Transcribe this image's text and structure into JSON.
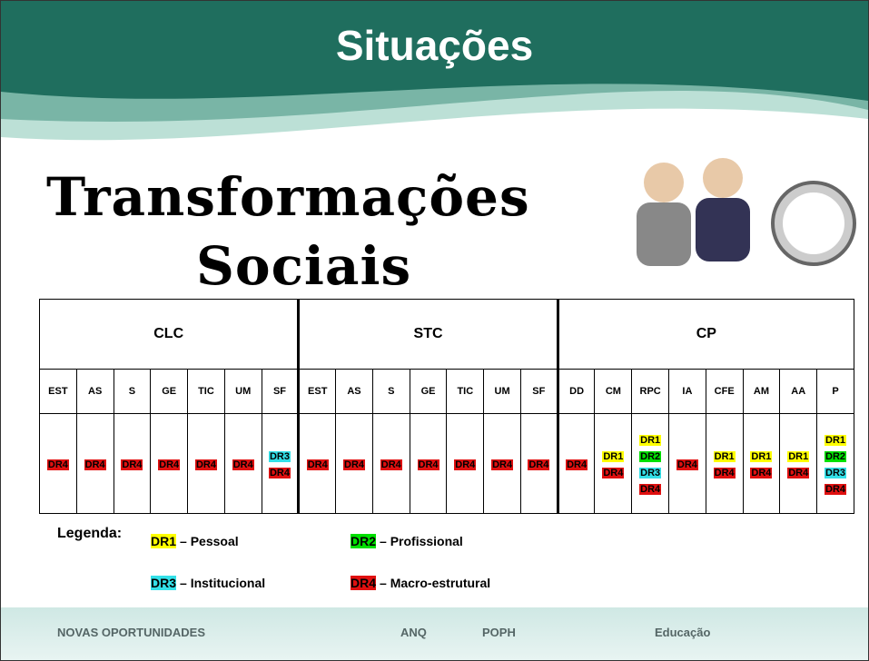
{
  "header": {
    "title": "Situações"
  },
  "subtitle": [
    "Transformações",
    "Sociais"
  ],
  "table": {
    "groups": [
      {
        "name": "CLC",
        "columns": [
          "EST",
          "AS",
          "S",
          "GE",
          "TIC",
          "UM",
          "SF"
        ],
        "cells": [
          [
            "DR4"
          ],
          [
            "DR4"
          ],
          [
            "DR4"
          ],
          [
            "DR4"
          ],
          [
            "DR4"
          ],
          [
            "DR4"
          ],
          [
            "DR3",
            "DR4"
          ]
        ]
      },
      {
        "name": "STC",
        "columns": [
          "EST",
          "AS",
          "S",
          "GE",
          "TIC",
          "UM",
          "SF"
        ],
        "cells": [
          [
            "DR4"
          ],
          [
            "DR4"
          ],
          [
            "DR4"
          ],
          [
            "DR4"
          ],
          [
            "DR4"
          ],
          [
            "DR4"
          ],
          [
            "DR4"
          ]
        ]
      },
      {
        "name": "CP",
        "columns": [
          "DD",
          "CM",
          "RPC",
          "IA",
          "CFE",
          "AM",
          "AA",
          "P"
        ],
        "cells": [
          [
            "DR4"
          ],
          [
            "DR1",
            "DR4"
          ],
          [
            "DR1",
            "DR2",
            "DR3",
            "DR4"
          ],
          [
            "DR4"
          ],
          [
            "DR1",
            "DR4"
          ],
          [
            "DR1",
            "DR4"
          ],
          [
            "DR1",
            "DR4"
          ],
          [
            "DR1",
            "DR2",
            "DR3",
            "DR4"
          ]
        ]
      }
    ]
  },
  "legend": {
    "label": "Legenda:",
    "items": [
      {
        "code": "DR1",
        "text": "– Pessoal",
        "color": "#ffff00"
      },
      {
        "code": "DR2",
        "text": "– Profissional",
        "color": "#00e000"
      },
      {
        "code": "DR3",
        "text": "– Institucional",
        "color": "#33e0e8"
      },
      {
        "code": "DR4",
        "text": "– Macro-estrutural",
        "color": "#e01010"
      }
    ]
  },
  "footer": {
    "logos": [
      "NOVAS OPORTUNIDADES",
      "ANQ",
      "POPH",
      "Educação"
    ]
  }
}
